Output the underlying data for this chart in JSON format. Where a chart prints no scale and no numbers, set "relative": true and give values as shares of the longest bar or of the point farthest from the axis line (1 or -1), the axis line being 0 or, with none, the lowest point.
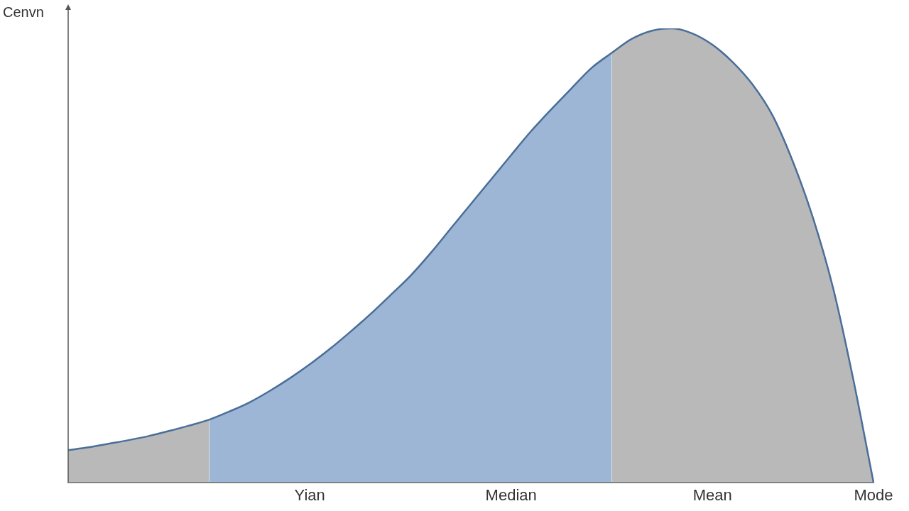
{
  "chart_data": {
    "type": "area",
    "ylabel": "Cenvn",
    "relative": true,
    "grid": false,
    "legend": false,
    "marker": "none",
    "categories": [
      null,
      null,
      null,
      null,
      null,
      null,
      null,
      null,
      null,
      null,
      null,
      null,
      "Yian",
      null,
      null,
      null,
      null,
      null,
      null,
      null,
      null,
      null,
      "Median",
      null,
      null,
      null,
      null,
      null,
      null,
      null,
      null,
      null,
      "Mean",
      null,
      null,
      null,
      null,
      null,
      null,
      null,
      "Mode"
    ],
    "series": [
      {
        "color": "#b9b9b9",
        "values": [
          0.071,
          0.077,
          0.085,
          0.093,
          0.102,
          0.113,
          0.125,
          0.138,
          null,
          null,
          null,
          null,
          null,
          null,
          null,
          null,
          null,
          null,
          null,
          null,
          null,
          null,
          null,
          null,
          null,
          null,
          null,
          null,
          null,
          null,
          null,
          null,
          null,
          null,
          null,
          null,
          null,
          null,
          null,
          null,
          null
        ]
      },
      {
        "color": "#9db6d5",
        "values": [
          null,
          null,
          null,
          null,
          null,
          null,
          null,
          0.138,
          0.156,
          0.176,
          0.201,
          0.229,
          0.26,
          0.294,
          0.331,
          0.37,
          0.412,
          0.455,
          0.505,
          0.559,
          0.613,
          0.667,
          0.721,
          0.774,
          0.822,
          0.868,
          0.913,
          0.946,
          null,
          null,
          null,
          null,
          null,
          null,
          null,
          null,
          null,
          null,
          null,
          null,
          null
        ]
      },
      {
        "color": "#b9b9b9",
        "values": [
          null,
          null,
          null,
          null,
          null,
          null,
          null,
          null,
          null,
          null,
          null,
          null,
          null,
          null,
          null,
          null,
          null,
          null,
          null,
          null,
          null,
          null,
          null,
          null,
          null,
          null,
          null,
          0.946,
          0.977,
          0.995,
          1,
          0.989,
          0.964,
          0.926,
          0.876,
          0.807,
          0.706,
          0.582,
          0.427,
          0.226,
          0
        ]
      },
      {
        "type": "line",
        "color": "#4a6e98",
        "values": [
          0.071,
          0.077,
          0.085,
          0.093,
          0.102,
          0.113,
          0.125,
          0.138,
          0.156,
          0.176,
          0.201,
          0.229,
          0.26,
          0.294,
          0.331,
          0.37,
          0.412,
          0.455,
          0.505,
          0.559,
          0.613,
          0.667,
          0.721,
          0.774,
          0.822,
          0.868,
          0.913,
          0.946,
          0.977,
          0.995,
          1,
          0.989,
          0.964,
          0.926,
          0.876,
          0.807,
          0.706,
          0.582,
          0.427,
          0.226,
          0
        ]
      }
    ]
  }
}
